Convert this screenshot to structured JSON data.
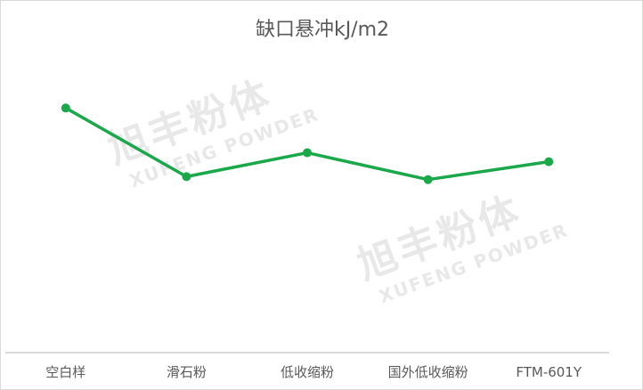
{
  "watermark": {
    "cn": "旭丰粉体",
    "en": "XUFENG POWDER"
  },
  "chart_data": {
    "type": "line",
    "title": "缺口悬冲kJ/m2",
    "categories": [
      "空白样",
      "滑石粉",
      "低收缩粉",
      "国外低收缩粉",
      "FTM-601Y"
    ],
    "values": [
      8.2,
      5.9,
      6.7,
      5.8,
      6.4
    ],
    "ylim": [
      0,
      10
    ],
    "grid": false,
    "legend": "none",
    "line_color": "#1aa84a",
    "axis_color": "#d9d9d9",
    "label_color": "#595959"
  }
}
